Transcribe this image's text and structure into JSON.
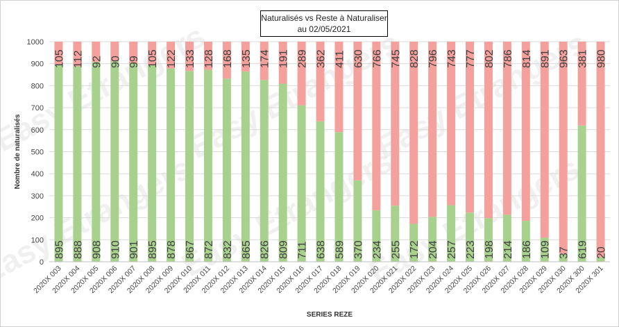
{
  "chart_data": {
    "type": "bar",
    "stacked": true,
    "title": "Naturalisés vs Reste à Naturaliser",
    "subtitle": "au 02/05/2021",
    "xlabel": "SERIES REZE",
    "ylabel": "Nombre de naturalisés",
    "ylim": [
      0,
      1000
    ],
    "yticks": [
      "0",
      "100",
      "200",
      "300",
      "400",
      "500",
      "600",
      "700",
      "800",
      "900",
      "1000"
    ],
    "grid": true,
    "legend": "none",
    "categories": [
      "2020X 003",
      "2020X 004",
      "2020X 005",
      "2020X 006",
      "2020X 007",
      "2020X 008",
      "2020X 009",
      "2020X 010",
      "2020X 011",
      "2020X 012",
      "2020X 013",
      "2020X 014",
      "2020X 015",
      "2020X 016",
      "2020X 017",
      "2020X 018",
      "2020X 019",
      "2020X 020",
      "2020X 021",
      "2020X 022",
      "2020X 023",
      "2020X 024",
      "2020X 025",
      "2020X 026",
      "2020X 027",
      "2020X 028",
      "2020X 029",
      "2020X 030",
      "2020X 300",
      "2020X 301"
    ],
    "series": [
      {
        "color": "#a9d18e",
        "values": [
          895,
          888,
          908,
          910,
          901,
          895,
          878,
          867,
          872,
          832,
          865,
          826,
          809,
          711,
          638,
          589,
          370,
          234,
          255,
          172,
          204,
          257,
          223,
          198,
          214,
          186,
          109,
          37,
          619,
          20
        ]
      },
      {
        "color": "#f4a09c",
        "values": [
          105,
          112,
          92,
          90,
          99,
          105,
          122,
          133,
          128,
          168,
          135,
          174,
          191,
          289,
          362,
          411,
          630,
          766,
          745,
          828,
          796,
          743,
          777,
          802,
          786,
          814,
          891,
          963,
          381,
          980
        ]
      }
    ]
  },
  "watermark": "Easy Etrangers"
}
